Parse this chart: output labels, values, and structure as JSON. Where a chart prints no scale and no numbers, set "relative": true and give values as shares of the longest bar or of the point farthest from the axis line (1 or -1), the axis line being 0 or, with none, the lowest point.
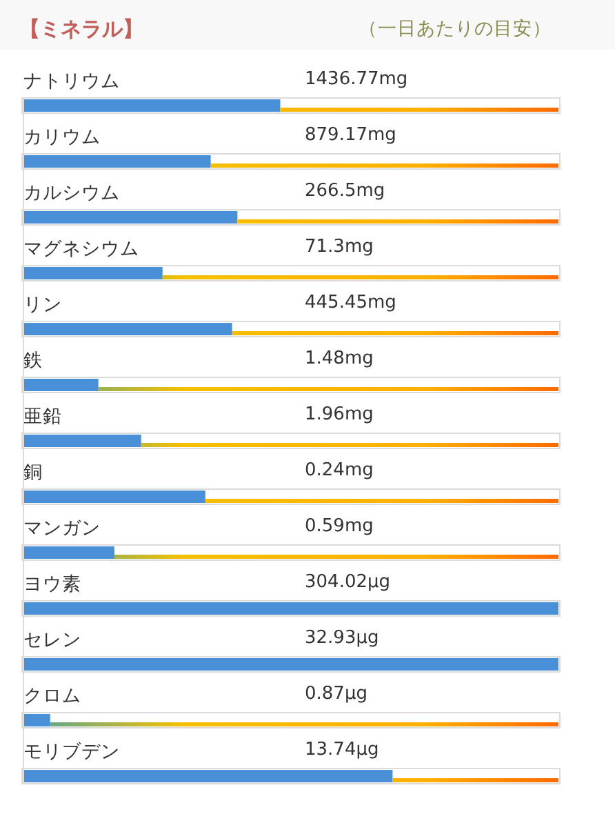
{
  "chart_data": {
    "type": "bar",
    "orientation": "horizontal",
    "relative": true,
    "title": "【ミネラル】",
    "subtitle": "（一日あたりの目安）",
    "categories": [
      "ナトリウム",
      "カリウム",
      "カルシウム",
      "マグネシウム",
      "リン",
      "鉄",
      "亜鉛",
      "銅",
      "マンガン",
      "ヨウ素",
      "セレン",
      "クロム",
      "モリブデン"
    ],
    "series": [
      {
        "color": "#4a90d9",
        "values": [
          0.48,
          0.35,
          0.4,
          0.26,
          0.39,
          0.14,
          0.22,
          0.34,
          0.17,
          1,
          1,
          0.05,
          0.69
        ]
      }
    ],
    "annotations": [
      "1436.77mg",
      "879.17mg",
      "266.5mg",
      "71.3mg",
      "445.45mg",
      "1.48mg",
      "1.96mg",
      "0.24mg",
      "0.59mg",
      "304.02µg",
      "32.93µg",
      "0.87µg",
      "13.74µg"
    ]
  }
}
